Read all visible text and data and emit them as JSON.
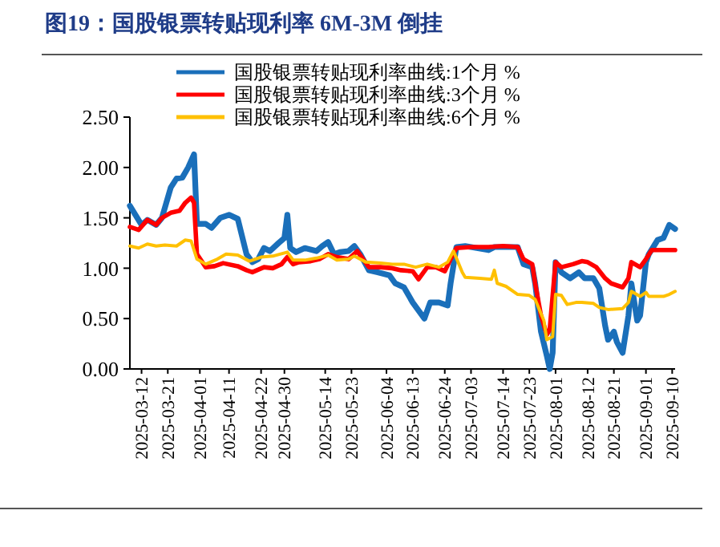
{
  "chart_data": {
    "type": "line",
    "title": "图19：国股银票转贴现利率 6M-3M 倒挂",
    "xlim": [
      "2025-03-08",
      "2025-09-11"
    ],
    "xticks": [
      "2025-03-12",
      "2025-03-21",
      "2025-04-01",
      "2025-04-11",
      "2025-04-22",
      "2025-04-30",
      "2025-05-14",
      "2025-05-23",
      "2025-06-04",
      "2025-06-13",
      "2025-06-24",
      "2025-07-03",
      "2025-07-14",
      "2025-07-23",
      "2025-08-01",
      "2025-08-12",
      "2025-08-21",
      "2025-09-01",
      "2025-09-10"
    ],
    "ylim": [
      0,
      2.5
    ],
    "yticks": [
      {
        "value": 0,
        "label": "0.00"
      },
      {
        "value": 0.5,
        "label": "0.50"
      },
      {
        "value": 1,
        "label": "1.00"
      },
      {
        "value": 1.5,
        "label": "1.50"
      },
      {
        "value": 2,
        "label": "2.00"
      },
      {
        "value": 2.5,
        "label": "2.50"
      }
    ],
    "legend": "top",
    "grid": false,
    "marker": "none",
    "line_style": "solid",
    "series": [
      {
        "name": "国股银票转贴现利率曲线:1个月 %",
        "color": "#1a6fba",
        "x": [
          "2025-03-08",
          "2025-03-12",
          "2025-03-14",
          "2025-03-17",
          "2025-03-19",
          "2025-03-22",
          "2025-03-24",
          "2025-03-26",
          "2025-03-28",
          "2025-03-30",
          "2025-03-31",
          "2025-04-03",
          "2025-04-05",
          "2025-04-08",
          "2025-04-11",
          "2025-04-14",
          "2025-04-17",
          "2025-04-19",
          "2025-04-21",
          "2025-04-23",
          "2025-04-25",
          "2025-04-28",
          "2025-04-30",
          "2025-05-01",
          "2025-05-02",
          "2025-05-04",
          "2025-05-07",
          "2025-05-11",
          "2025-05-13",
          "2025-05-15",
          "2025-05-17",
          "2025-05-19",
          "2025-05-22",
          "2025-05-24",
          "2025-05-26",
          "2025-05-29",
          "2025-06-01",
          "2025-06-05",
          "2025-06-07",
          "2025-06-10",
          "2025-06-13",
          "2025-06-17",
          "2025-06-19",
          "2025-06-22",
          "2025-06-25",
          "2025-06-26",
          "2025-06-28",
          "2025-07-01",
          "2025-07-05",
          "2025-07-09",
          "2025-07-11",
          "2025-07-15",
          "2025-07-19",
          "2025-07-21",
          "2025-07-24",
          "2025-07-25",
          "2025-07-27",
          "2025-07-29",
          "2025-07-30",
          "2025-07-31",
          "2025-08-01",
          "2025-08-03",
          "2025-08-06",
          "2025-08-09",
          "2025-08-11",
          "2025-08-14",
          "2025-08-16",
          "2025-08-18",
          "2025-08-19",
          "2025-08-21",
          "2025-08-22",
          "2025-08-24",
          "2025-08-26",
          "2025-08-27",
          "2025-08-29",
          "2025-08-30",
          "2025-09-01",
          "2025-09-02",
          "2025-09-05",
          "2025-09-07",
          "2025-09-09",
          "2025-09-11"
        ],
        "values": [
          1.62,
          1.43,
          1.48,
          1.43,
          1.5,
          1.8,
          1.89,
          1.9,
          2.0,
          2.13,
          1.44,
          1.44,
          1.4,
          1.5,
          1.53,
          1.49,
          1.14,
          1.06,
          1.09,
          1.2,
          1.17,
          1.25,
          1.3,
          1.53,
          1.2,
          1.16,
          1.2,
          1.17,
          1.22,
          1.26,
          1.14,
          1.16,
          1.17,
          1.22,
          1.14,
          0.98,
          0.96,
          0.93,
          0.85,
          0.81,
          0.66,
          0.5,
          0.66,
          0.66,
          0.63,
          0.85,
          1.21,
          1.22,
          1.2,
          1.18,
          1.21,
          1.21,
          1.21,
          1.04,
          1.01,
          0.85,
          0.37,
          0.13,
          0.0,
          0.16,
          1.06,
          0.96,
          0.9,
          0.96,
          0.9,
          0.9,
          0.8,
          0.43,
          0.29,
          0.37,
          0.27,
          0.16,
          0.53,
          0.85,
          0.48,
          0.53,
          1.06,
          1.14,
          1.28,
          1.3,
          1.43,
          1.39
        ]
      },
      {
        "name": "国股银票转贴现利率曲线:3个月 %",
        "color": "#ff0000",
        "x": [
          "2025-03-08",
          "2025-03-11",
          "2025-03-14",
          "2025-03-17",
          "2025-03-19",
          "2025-03-22",
          "2025-03-25",
          "2025-03-27",
          "2025-03-29",
          "2025-03-30",
          "2025-03-31",
          "2025-04-03",
          "2025-04-06",
          "2025-04-09",
          "2025-04-14",
          "2025-04-17",
          "2025-04-19",
          "2025-04-23",
          "2025-04-26",
          "2025-04-29",
          "2025-05-01",
          "2025-05-03",
          "2025-05-05",
          "2025-05-09",
          "2025-05-12",
          "2025-05-15",
          "2025-05-18",
          "2025-05-22",
          "2025-05-25",
          "2025-05-29",
          "2025-06-02",
          "2025-06-06",
          "2025-06-09",
          "2025-06-13",
          "2025-06-15",
          "2025-06-18",
          "2025-06-21",
          "2025-06-24",
          "2025-06-26",
          "2025-06-28",
          "2025-07-03",
          "2025-07-09",
          "2025-07-14",
          "2025-07-19",
          "2025-07-21",
          "2025-07-24",
          "2025-07-25",
          "2025-07-27",
          "2025-07-29",
          "2025-07-30",
          "2025-08-01",
          "2025-08-03",
          "2025-08-07",
          "2025-08-10",
          "2025-08-12",
          "2025-08-15",
          "2025-08-18",
          "2025-08-20",
          "2025-08-24",
          "2025-08-26",
          "2025-08-27",
          "2025-08-30",
          "2025-09-01",
          "2025-09-03",
          "2025-09-07",
          "2025-09-11"
        ],
        "values": [
          1.41,
          1.38,
          1.48,
          1.43,
          1.5,
          1.55,
          1.57,
          1.65,
          1.7,
          1.65,
          1.14,
          1.01,
          1.02,
          1.05,
          1.02,
          0.98,
          0.96,
          1.01,
          1.0,
          1.04,
          1.11,
          1.04,
          1.06,
          1.07,
          1.09,
          1.14,
          1.11,
          1.09,
          1.17,
          1.01,
          1.01,
          1.0,
          0.98,
          0.97,
          0.89,
          1.01,
          1.01,
          0.97,
          1.09,
          1.2,
          1.21,
          1.21,
          1.22,
          1.21,
          1.09,
          1.04,
          0.85,
          0.53,
          0.34,
          0.39,
          1.06,
          1.01,
          1.04,
          1.07,
          1.06,
          1.01,
          0.9,
          0.85,
          0.81,
          0.9,
          1.06,
          1.01,
          1.09,
          1.18,
          1.18,
          1.18
        ]
      },
      {
        "name": "国股银票转贴现利率曲线:6个月 %",
        "color": "#ffc000",
        "x": [
          "2025-03-08",
          "2025-03-11",
          "2025-03-14",
          "2025-03-17",
          "2025-03-20",
          "2025-03-24",
          "2025-03-27",
          "2025-03-29",
          "2025-03-31",
          "2025-04-03",
          "2025-04-07",
          "2025-04-10",
          "2025-04-14",
          "2025-04-18",
          "2025-04-22",
          "2025-04-26",
          "2025-05-01",
          "2025-05-03",
          "2025-05-07",
          "2025-05-11",
          "2025-05-15",
          "2025-05-18",
          "2025-05-22",
          "2025-05-24",
          "2025-05-28",
          "2025-06-02",
          "2025-06-06",
          "2025-06-10",
          "2025-06-14",
          "2025-06-18",
          "2025-06-22",
          "2025-06-25",
          "2025-06-27",
          "2025-06-30",
          "2025-07-01",
          "2025-07-06",
          "2025-07-10",
          "2025-07-11",
          "2025-07-12",
          "2025-07-15",
          "2025-07-19",
          "2025-07-23",
          "2025-07-25",
          "2025-07-28",
          "2025-07-29",
          "2025-07-31",
          "2025-08-01",
          "2025-08-03",
          "2025-08-05",
          "2025-08-08",
          "2025-08-10",
          "2025-08-14",
          "2025-08-16",
          "2025-08-19",
          "2025-08-24",
          "2025-08-26",
          "2025-08-27",
          "2025-08-30",
          "2025-09-01",
          "2025-09-02",
          "2025-09-07",
          "2025-09-09",
          "2025-09-11"
        ],
        "values": [
          1.22,
          1.2,
          1.24,
          1.22,
          1.23,
          1.22,
          1.28,
          1.27,
          1.09,
          1.04,
          1.09,
          1.14,
          1.13,
          1.07,
          1.11,
          1.12,
          1.16,
          1.08,
          1.08,
          1.1,
          1.13,
          1.08,
          1.09,
          1.12,
          1.06,
          1.05,
          1.04,
          1.04,
          1.01,
          1.04,
          1.01,
          1.06,
          1.17,
          0.96,
          0.91,
          0.9,
          0.89,
          0.98,
          0.85,
          0.82,
          0.74,
          0.73,
          0.69,
          0.48,
          0.29,
          0.32,
          0.74,
          0.73,
          0.64,
          0.66,
          0.66,
          0.65,
          0.61,
          0.59,
          0.6,
          0.66,
          0.77,
          0.72,
          0.76,
          0.72,
          0.72,
          0.74,
          0.77
        ]
      }
    ]
  }
}
